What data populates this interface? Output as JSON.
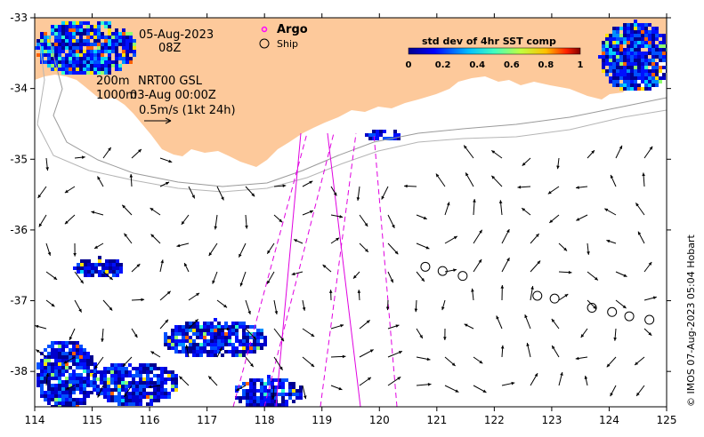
{
  "map": {
    "date": "05-Aug-2023",
    "time": "08Z",
    "depth_200": "200m",
    "depth_1000": "1000m",
    "product": "NRT00 GSL",
    "product_time": "03-Aug 00:00Z",
    "scale_label": "0.5m/s (1kt 24h)",
    "legend_argo": "Argo",
    "legend_ship": "Ship",
    "colorbar_title": "std dev of 4hr SST comp",
    "colorbar_ticks": [
      "0",
      "0.2",
      "0.4",
      "0.6",
      "0.8",
      "1"
    ],
    "x_ticks": [
      "114",
      "115",
      "116",
      "117",
      "118",
      "119",
      "120",
      "121",
      "122",
      "123",
      "124",
      "125"
    ],
    "y_ticks": [
      "-33",
      "-34",
      "-35",
      "-36",
      "-37",
      "-38"
    ],
    "credit": "© IMOS 07-Aug-2023 05:04 Hobart",
    "x_range": [
      114,
      125
    ],
    "y_range": [
      -38.5,
      -33
    ],
    "colors": {
      "land": "#fdc99b",
      "argo": "#ff00ff",
      "track": "#e000e0",
      "arrow": "#000000",
      "contour_200": "#9a9a9a",
      "contour_1000": "#b5b5b5"
    },
    "ships": [
      [
        120.8,
        -36.52
      ],
      [
        121.1,
        -36.58
      ],
      [
        121.45,
        -36.65
      ],
      [
        122.75,
        -36.93
      ],
      [
        123.05,
        -36.97
      ],
      [
        123.7,
        -37.1
      ],
      [
        124.05,
        -37.16
      ],
      [
        124.35,
        -37.22
      ],
      [
        124.7,
        -37.27
      ]
    ]
  }
}
